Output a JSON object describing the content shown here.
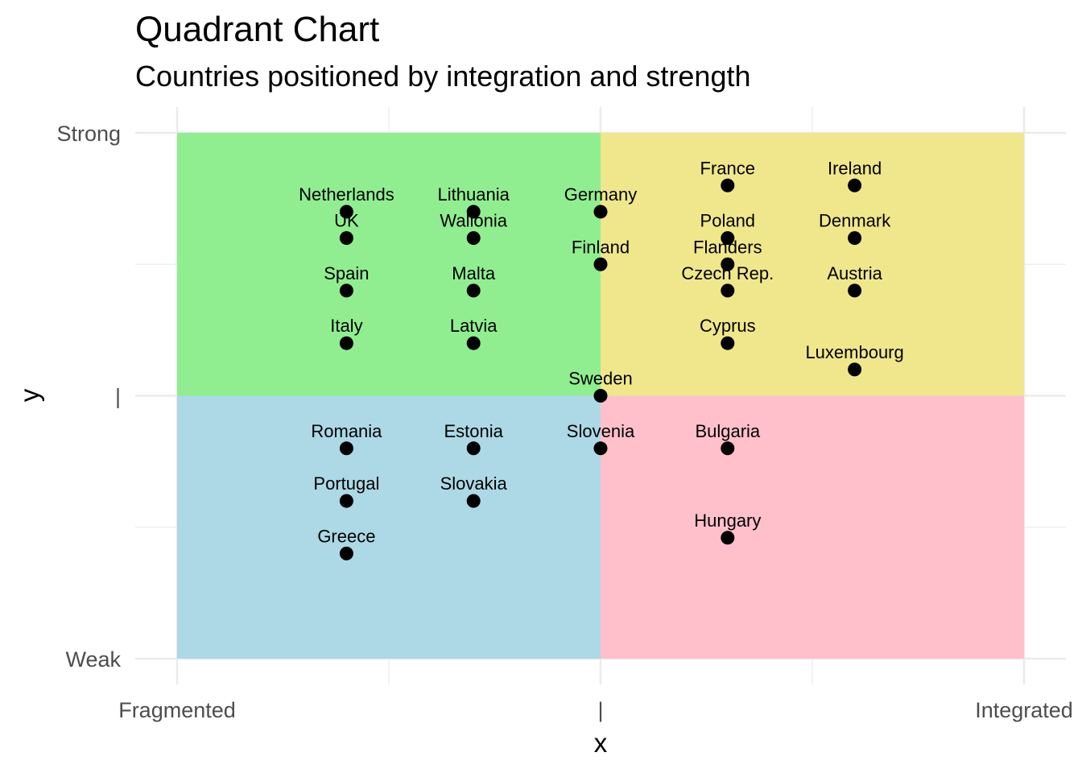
{
  "chart_data": {
    "type": "scatter",
    "title": "Quadrant Chart",
    "subtitle": "Countries positioned by integration and strength",
    "xlabel": "x",
    "ylabel": "y",
    "xlim": [
      0,
      10
    ],
    "ylim": [
      0,
      10
    ],
    "x_ticks": [
      {
        "value": 0,
        "label": "Fragmented"
      },
      {
        "value": 5,
        "label": "|"
      },
      {
        "value": 10,
        "label": "Integrated"
      }
    ],
    "y_ticks": [
      {
        "value": 0,
        "label": "Weak"
      },
      {
        "value": 5,
        "label": "|"
      },
      {
        "value": 10,
        "label": "Strong"
      }
    ],
    "grid": true,
    "quadrants": [
      {
        "name": "top-left",
        "x": [
          0,
          5
        ],
        "y": [
          5,
          10
        ],
        "color": "#90ee90"
      },
      {
        "name": "top-right",
        "x": [
          5,
          10
        ],
        "y": [
          5,
          10
        ],
        "color": "#f0e68c"
      },
      {
        "name": "bottom-left",
        "x": [
          0,
          5
        ],
        "y": [
          0,
          5
        ],
        "color": "#add8e6"
      },
      {
        "name": "bottom-right",
        "x": [
          5,
          10
        ],
        "y": [
          0,
          5
        ],
        "color": "#ffc0cb"
      }
    ],
    "points": [
      {
        "label": "Netherlands",
        "x": 2,
        "y": 8.5
      },
      {
        "label": "UK",
        "x": 2,
        "y": 8
      },
      {
        "label": "Spain",
        "x": 2,
        "y": 7
      },
      {
        "label": "Italy",
        "x": 2,
        "y": 6
      },
      {
        "label": "Lithuania",
        "x": 3.5,
        "y": 8.5
      },
      {
        "label": "Wallonia",
        "x": 3.5,
        "y": 8
      },
      {
        "label": "Malta",
        "x": 3.5,
        "y": 7
      },
      {
        "label": "Latvia",
        "x": 3.5,
        "y": 6
      },
      {
        "label": "Germany",
        "x": 5,
        "y": 8.5
      },
      {
        "label": "Finland",
        "x": 5,
        "y": 7.5
      },
      {
        "label": "Sweden",
        "x": 5,
        "y": 5
      },
      {
        "label": "Slovenia",
        "x": 5,
        "y": 4
      },
      {
        "label": "France",
        "x": 6.5,
        "y": 9
      },
      {
        "label": "Poland",
        "x": 6.5,
        "y": 8
      },
      {
        "label": "Flanders",
        "x": 6.5,
        "y": 7.5
      },
      {
        "label": "Czech Rep.",
        "x": 6.5,
        "y": 7
      },
      {
        "label": "Cyprus",
        "x": 6.5,
        "y": 6
      },
      {
        "label": "Bulgaria",
        "x": 6.5,
        "y": 4
      },
      {
        "label": "Hungary",
        "x": 6.5,
        "y": 2.3
      },
      {
        "label": "Ireland",
        "x": 8,
        "y": 9
      },
      {
        "label": "Denmark",
        "x": 8,
        "y": 8
      },
      {
        "label": "Austria",
        "x": 8,
        "y": 7
      },
      {
        "label": "Luxembourg",
        "x": 8,
        "y": 5.5
      },
      {
        "label": "Romania",
        "x": 2,
        "y": 4
      },
      {
        "label": "Portugal",
        "x": 2,
        "y": 3
      },
      {
        "label": "Greece",
        "x": 2,
        "y": 2
      },
      {
        "label": "Estonia",
        "x": 3.5,
        "y": 4
      },
      {
        "label": "Slovakia",
        "x": 3.5,
        "y": 3
      }
    ],
    "point_color": "#000000",
    "gridline_color": "#ebebeb"
  }
}
